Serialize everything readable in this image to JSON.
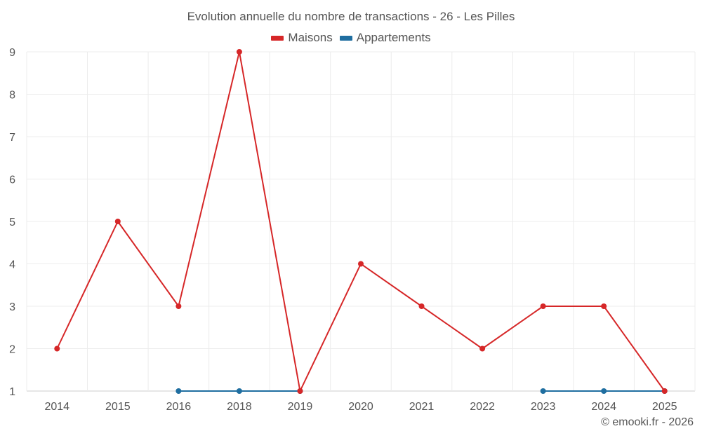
{
  "chart_data": {
    "type": "line",
    "title": "Evolution annuelle du nombre de transactions - 26 - Les Pilles",
    "categories": [
      "2014",
      "2015",
      "2016",
      "2018",
      "2019",
      "2020",
      "2021",
      "2022",
      "2023",
      "2024",
      "2025"
    ],
    "y_ticks": [
      "1",
      "2",
      "3",
      "4",
      "5",
      "6",
      "7",
      "8",
      "9"
    ],
    "ylim": [
      1,
      9
    ],
    "grid": true,
    "legend_position": "top-center",
    "series": [
      {
        "name": "Maisons",
        "color": "#d62728",
        "values": [
          2,
          5,
          3,
          9,
          1,
          4,
          3,
          2,
          3,
          3,
          1
        ]
      },
      {
        "name": "Appartements",
        "color": "#1f6ea0",
        "values": [
          null,
          null,
          1,
          1,
          1,
          null,
          null,
          null,
          1,
          1,
          1
        ]
      }
    ]
  },
  "credit": "© emooki.fr - 2026"
}
